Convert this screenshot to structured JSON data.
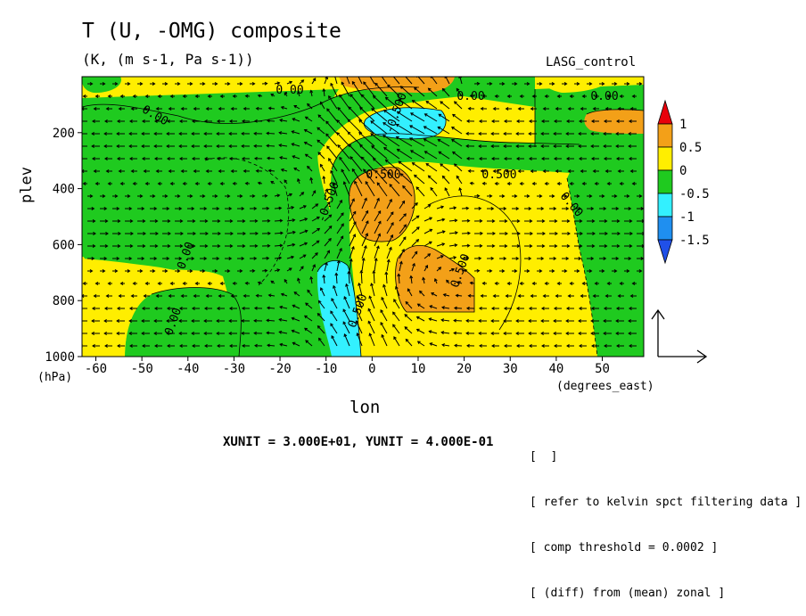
{
  "chart_data": {
    "type": "heatmap",
    "title": "T (U, -OMG) composite",
    "subtitle": "(K, (m s-1, Pa s-1))",
    "run_name": "LASG_control",
    "xlabel": "lon",
    "x_unit": "(degrees_east)",
    "ylabel": "plev",
    "y_unit": "(hPa)",
    "xlim": [
      -63,
      59
    ],
    "ylim": [
      1000,
      0
    ],
    "x_ticks": [
      "-60",
      "-50",
      "-40",
      "-30",
      "-20",
      "-10",
      "0",
      "10",
      "20",
      "30",
      "40",
      "50"
    ],
    "y_ticks": [
      "200",
      "400",
      "600",
      "800",
      "1000"
    ],
    "colorbar": {
      "labels": [
        "1",
        "0.5",
        "0",
        "-0.5",
        "-1",
        "-1.5"
      ],
      "colors": [
        "#e8000b",
        "#f3a018",
        "#ffee00",
        "#1fca1f",
        "#33f0ff",
        "#1f8ff0",
        "#2050e8"
      ]
    },
    "contour_labels": [
      "0.00",
      "0.00",
      "0.00",
      "0.00",
      "0.00",
      "0.00",
      "0.00",
      "-0.500",
      "-0.500",
      "0.500",
      "0.500",
      "0.500",
      "0.500"
    ],
    "vector_scale": "XUNIT = 3.000E+01, YUNIT = 4.000E-01",
    "notes": [
      "[  ]",
      "[ refer to kelvin spct filtering data ]",
      "[ comp threshold = 0.0002 ]",
      "[ (diff) from (mean) zonal ]"
    ]
  }
}
